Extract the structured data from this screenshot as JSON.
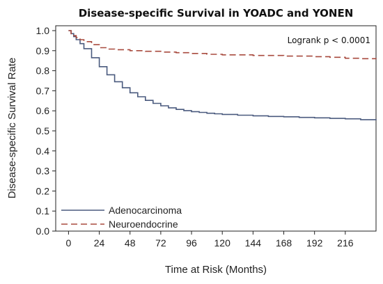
{
  "chart_data": {
    "type": "line",
    "title": "Disease-specific Survival in YOADC and YONEN",
    "xlabel": "Time at Risk (Months)",
    "ylabel": "Disease-specific Survival Rate",
    "xlim": [
      -10,
      240
    ],
    "ylim": [
      0,
      1.0
    ],
    "x_ticks": [
      0,
      24,
      48,
      72,
      96,
      120,
      144,
      168,
      192,
      216
    ],
    "y_ticks": [
      "0.0",
      "0.1",
      "0.2",
      "0.3",
      "0.4",
      "0.5",
      "0.6",
      "0.7",
      "0.8",
      "0.9",
      "1.0"
    ],
    "grid": false,
    "legend_position": "bottom-left",
    "annotation": "Logrank p < 0.0001",
    "series": [
      {
        "name": "Adenocarcinoma",
        "color": "#4a5a7e",
        "style": "solid",
        "x": [
          0,
          2,
          4,
          6,
          9,
          12,
          18,
          24,
          30,
          36,
          42,
          48,
          54,
          60,
          66,
          72,
          78,
          84,
          90,
          96,
          102,
          108,
          114,
          120,
          132,
          144,
          156,
          168,
          180,
          192,
          204,
          216,
          228,
          240
        ],
        "y": [
          1.0,
          0.985,
          0.97,
          0.955,
          0.935,
          0.91,
          0.865,
          0.82,
          0.78,
          0.745,
          0.715,
          0.69,
          0.67,
          0.652,
          0.637,
          0.625,
          0.615,
          0.607,
          0.601,
          0.596,
          0.592,
          0.588,
          0.585,
          0.582,
          0.578,
          0.575,
          0.572,
          0.57,
          0.567,
          0.565,
          0.562,
          0.56,
          0.556,
          0.553
        ]
      },
      {
        "name": "Neuroendocrine",
        "color": "#a84a3e",
        "style": "dashed",
        "x": [
          0,
          2,
          4,
          6,
          9,
          12,
          18,
          24,
          30,
          36,
          48,
          60,
          72,
          84,
          96,
          108,
          120,
          144,
          168,
          192,
          204,
          216,
          228,
          240
        ],
        "y": [
          1.0,
          0.985,
          0.975,
          0.965,
          0.955,
          0.945,
          0.93,
          0.915,
          0.908,
          0.905,
          0.9,
          0.897,
          0.893,
          0.89,
          0.886,
          0.882,
          0.879,
          0.876,
          0.873,
          0.87,
          0.867,
          0.862,
          0.86,
          0.858
        ]
      }
    ]
  }
}
